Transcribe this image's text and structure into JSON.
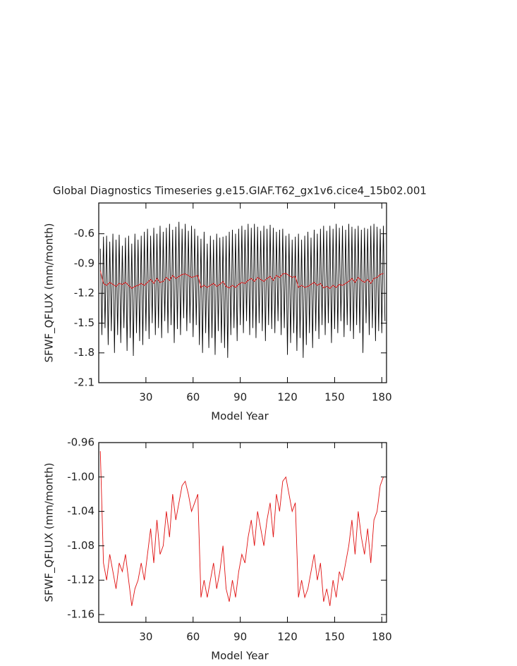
{
  "chart_data": [
    {
      "type": "line",
      "title": "Global Diagnostics Timeseries g.e15.GIAF.T62_gx1v6.cice4_15b02.001",
      "xlabel": "Model Year",
      "ylabel": "SFWF_QFLUX (mm/month)",
      "xlim": [
        0,
        183
      ],
      "xticks": [
        30,
        60,
        90,
        120,
        150,
        180
      ],
      "ylim": [
        -2.1,
        -0.29
      ],
      "yticks": [
        -2.1,
        -1.8,
        -1.5,
        -1.2,
        -0.9,
        -0.6
      ],
      "series": [
        {
          "color": "#000000",
          "x": [
            1,
            2,
            3,
            4,
            5,
            6,
            7,
            8,
            9,
            10,
            11,
            12,
            13,
            14,
            15,
            16,
            17,
            18,
            19,
            20,
            21,
            22,
            23,
            24,
            25,
            26,
            27,
            28,
            29,
            30,
            31,
            32,
            33,
            34,
            35,
            36,
            37,
            38,
            39,
            40,
            41,
            42,
            43,
            44,
            45,
            46,
            47,
            48,
            49,
            50,
            51,
            52,
            53,
            54,
            55,
            56,
            57,
            58,
            59,
            60,
            61,
            62,
            63,
            64,
            65,
            66,
            67,
            68,
            69,
            70,
            71,
            72,
            73,
            74,
            75,
            76,
            77,
            78,
            79,
            80,
            81,
            82,
            83,
            84,
            85,
            86,
            87,
            88,
            89,
            90,
            91,
            92,
            93,
            94,
            95,
            96,
            97,
            98,
            99,
            100,
            101,
            102,
            103,
            104,
            105,
            106,
            107,
            108,
            109,
            110,
            111,
            112,
            113,
            114,
            115,
            116,
            117,
            118,
            119,
            120,
            121,
            122,
            123,
            124,
            125,
            126,
            127,
            128,
            129,
            130,
            131,
            132,
            133,
            134,
            135,
            136,
            137,
            138,
            139,
            140,
            141,
            142,
            143,
            144,
            145,
            146,
            147,
            148,
            149,
            150,
            151,
            152,
            153,
            154,
            155,
            156,
            157,
            158,
            159,
            160,
            161,
            162,
            163,
            164,
            165,
            166,
            167,
            168,
            169,
            170,
            171,
            172,
            173,
            174,
            175,
            176,
            177,
            178,
            179,
            180,
            181,
            182
          ],
          "values": [
            -0.75,
            -1.62,
            -0.63,
            -1.55,
            -0.62,
            -1.72,
            -0.68,
            -1.58,
            -0.6,
            -1.8,
            -0.66,
            -1.62,
            -0.61,
            -1.7,
            -0.72,
            -1.55,
            -0.64,
            -1.78,
            -0.62,
            -1.65,
            -0.7,
            -1.83,
            -0.6,
            -1.6,
            -0.66,
            -1.68,
            -0.62,
            -1.72,
            -0.58,
            -1.58,
            -0.55,
            -1.66,
            -0.62,
            -1.5,
            -0.54,
            -1.62,
            -0.6,
            -1.55,
            -0.52,
            -1.65,
            -0.58,
            -1.48,
            -0.54,
            -1.6,
            -0.5,
            -1.52,
            -0.56,
            -1.7,
            -0.53,
            -1.56,
            -0.48,
            -1.62,
            -0.55,
            -1.45,
            -0.5,
            -1.58,
            -0.57,
            -1.5,
            -0.52,
            -1.64,
            -0.55,
            -1.52,
            -0.62,
            -1.72,
            -0.65,
            -1.8,
            -0.58,
            -1.6,
            -0.7,
            -1.75,
            -0.62,
            -1.65,
            -0.66,
            -1.82,
            -0.6,
            -1.58,
            -0.64,
            -1.7,
            -0.63,
            -1.75,
            -0.62,
            -1.85,
            -0.58,
            -1.62,
            -0.56,
            -1.55,
            -0.6,
            -1.68,
            -0.55,
            -1.52,
            -0.52,
            -1.6,
            -0.56,
            -1.48,
            -0.5,
            -1.62,
            -0.54,
            -1.55,
            -0.5,
            -1.65,
            -0.53,
            -1.5,
            -0.57,
            -1.58,
            -0.52,
            -1.68,
            -0.55,
            -1.52,
            -0.51,
            -1.56,
            -0.54,
            -1.6,
            -0.58,
            -1.48,
            -0.56,
            -1.62,
            -0.55,
            -1.55,
            -0.62,
            -1.82,
            -0.6,
            -1.7,
            -0.66,
            -1.6,
            -0.63,
            -1.78,
            -0.6,
            -1.65,
            -0.66,
            -1.85,
            -0.62,
            -1.72,
            -0.58,
            -1.6,
            -0.64,
            -1.75,
            -0.56,
            -1.58,
            -0.6,
            -1.66,
            -0.55,
            -1.52,
            -0.52,
            -1.62,
            -0.57,
            -1.5,
            -0.52,
            -1.7,
            -0.55,
            -1.56,
            -0.5,
            -1.6,
            -0.54,
            -1.48,
            -0.52,
            -1.64,
            -0.56,
            -1.52,
            -0.5,
            -1.58,
            -0.53,
            -1.66,
            -0.55,
            -1.52,
            -0.52,
            -1.6,
            -0.56,
            -1.8,
            -0.54,
            -1.5,
            -0.55,
            -1.62,
            -0.52,
            -1.55,
            -0.5,
            -1.68,
            -0.53,
            -1.58,
            -0.55,
            -1.6,
            -0.52,
            -1.48
          ]
        },
        {
          "color": "#e01010",
          "x": [
            1,
            3,
            5,
            7,
            9,
            11,
            13,
            15,
            17,
            19,
            21,
            23,
            25,
            27,
            29,
            31,
            33,
            35,
            37,
            39,
            41,
            43,
            45,
            47,
            49,
            51,
            53,
            55,
            57,
            59,
            61,
            63,
            65,
            67,
            69,
            71,
            73,
            75,
            77,
            79,
            81,
            83,
            85,
            87,
            89,
            91,
            93,
            95,
            97,
            99,
            101,
            103,
            105,
            107,
            109,
            111,
            113,
            115,
            117,
            119,
            121,
            123,
            125,
            127,
            129,
            131,
            133,
            135,
            137,
            139,
            141,
            143,
            145,
            147,
            149,
            151,
            153,
            155,
            157,
            159,
            161,
            163,
            165,
            167,
            169,
            171,
            173,
            175,
            177,
            179,
            181
          ],
          "values": [
            -0.97,
            -1.1,
            -1.12,
            -1.09,
            -1.11,
            -1.13,
            -1.1,
            -1.11,
            -1.09,
            -1.12,
            -1.15,
            -1.13,
            -1.12,
            -1.1,
            -1.12,
            -1.09,
            -1.06,
            -1.1,
            -1.05,
            -1.09,
            -1.08,
            -1.04,
            -1.07,
            -1.02,
            -1.05,
            -1.03,
            -1.01,
            -1.005,
            -1.02,
            -1.04,
            -1.03,
            -1.02,
            -1.14,
            -1.12,
            -1.14,
            -1.12,
            -1.1,
            -1.13,
            -1.11,
            -1.08,
            -1.13,
            -1.145,
            -1.12,
            -1.14,
            -1.11,
            -1.09,
            -1.1,
            -1.07,
            -1.05,
            -1.08,
            -1.04,
            -1.06,
            -1.08,
            -1.05,
            -1.03,
            -1.07,
            -1.02,
            -1.04,
            -1.005,
            -1.0,
            -1.02,
            -1.04,
            -1.03,
            -1.14,
            -1.12,
            -1.14,
            -1.13,
            -1.11,
            -1.09,
            -1.12,
            -1.1,
            -1.145,
            -1.13,
            -1.15,
            -1.12,
            -1.14,
            -1.11,
            -1.12,
            -1.1,
            -1.08,
            -1.05,
            -1.09,
            -1.04,
            -1.07,
            -1.09,
            -1.06,
            -1.1,
            -1.05,
            -1.04,
            -1.01,
            -1.0
          ]
        }
      ]
    },
    {
      "type": "line",
      "xlabel": "Model Year",
      "ylabel": "SFWF_QFLUX (mm/month)",
      "xlim": [
        0,
        183
      ],
      "xticks": [
        30,
        60,
        90,
        120,
        150,
        180
      ],
      "ylim": [
        -1.169,
        -0.96
      ],
      "yticks": [
        -1.16,
        -1.12,
        -1.08,
        -1.04,
        {
          "value": -1,
          "label": "-1.00"
        },
        -0.96
      ],
      "series": [
        {
          "color": "#e01010",
          "x": [
            1,
            3,
            5,
            7,
            9,
            11,
            13,
            15,
            17,
            19,
            21,
            23,
            25,
            27,
            29,
            31,
            33,
            35,
            37,
            39,
            41,
            43,
            45,
            47,
            49,
            51,
            53,
            55,
            57,
            59,
            61,
            63,
            65,
            67,
            69,
            71,
            73,
            75,
            77,
            79,
            81,
            83,
            85,
            87,
            89,
            91,
            93,
            95,
            97,
            99,
            101,
            103,
            105,
            107,
            109,
            111,
            113,
            115,
            117,
            119,
            121,
            123,
            125,
            127,
            129,
            131,
            133,
            135,
            137,
            139,
            141,
            143,
            145,
            147,
            149,
            151,
            153,
            155,
            157,
            159,
            161,
            163,
            165,
            167,
            169,
            171,
            173,
            175,
            177,
            179,
            181
          ],
          "values": [
            -0.97,
            -1.1,
            -1.12,
            -1.09,
            -1.11,
            -1.13,
            -1.1,
            -1.11,
            -1.09,
            -1.12,
            -1.15,
            -1.13,
            -1.12,
            -1.1,
            -1.12,
            -1.09,
            -1.06,
            -1.1,
            -1.05,
            -1.09,
            -1.08,
            -1.04,
            -1.07,
            -1.02,
            -1.05,
            -1.03,
            -1.01,
            -1.005,
            -1.02,
            -1.04,
            -1.03,
            -1.02,
            -1.14,
            -1.12,
            -1.14,
            -1.12,
            -1.1,
            -1.13,
            -1.11,
            -1.08,
            -1.13,
            -1.145,
            -1.12,
            -1.14,
            -1.11,
            -1.09,
            -1.1,
            -1.07,
            -1.05,
            -1.08,
            -1.04,
            -1.06,
            -1.08,
            -1.05,
            -1.03,
            -1.07,
            -1.02,
            -1.04,
            -1.005,
            -1.0,
            -1.02,
            -1.04,
            -1.03,
            -1.14,
            -1.12,
            -1.14,
            -1.13,
            -1.11,
            -1.09,
            -1.12,
            -1.1,
            -1.145,
            -1.13,
            -1.15,
            -1.12,
            -1.14,
            -1.11,
            -1.12,
            -1.1,
            -1.08,
            -1.05,
            -1.09,
            -1.04,
            -1.07,
            -1.09,
            -1.06,
            -1.1,
            -1.05,
            -1.04,
            -1.01,
            -1.0
          ]
        }
      ]
    }
  ]
}
